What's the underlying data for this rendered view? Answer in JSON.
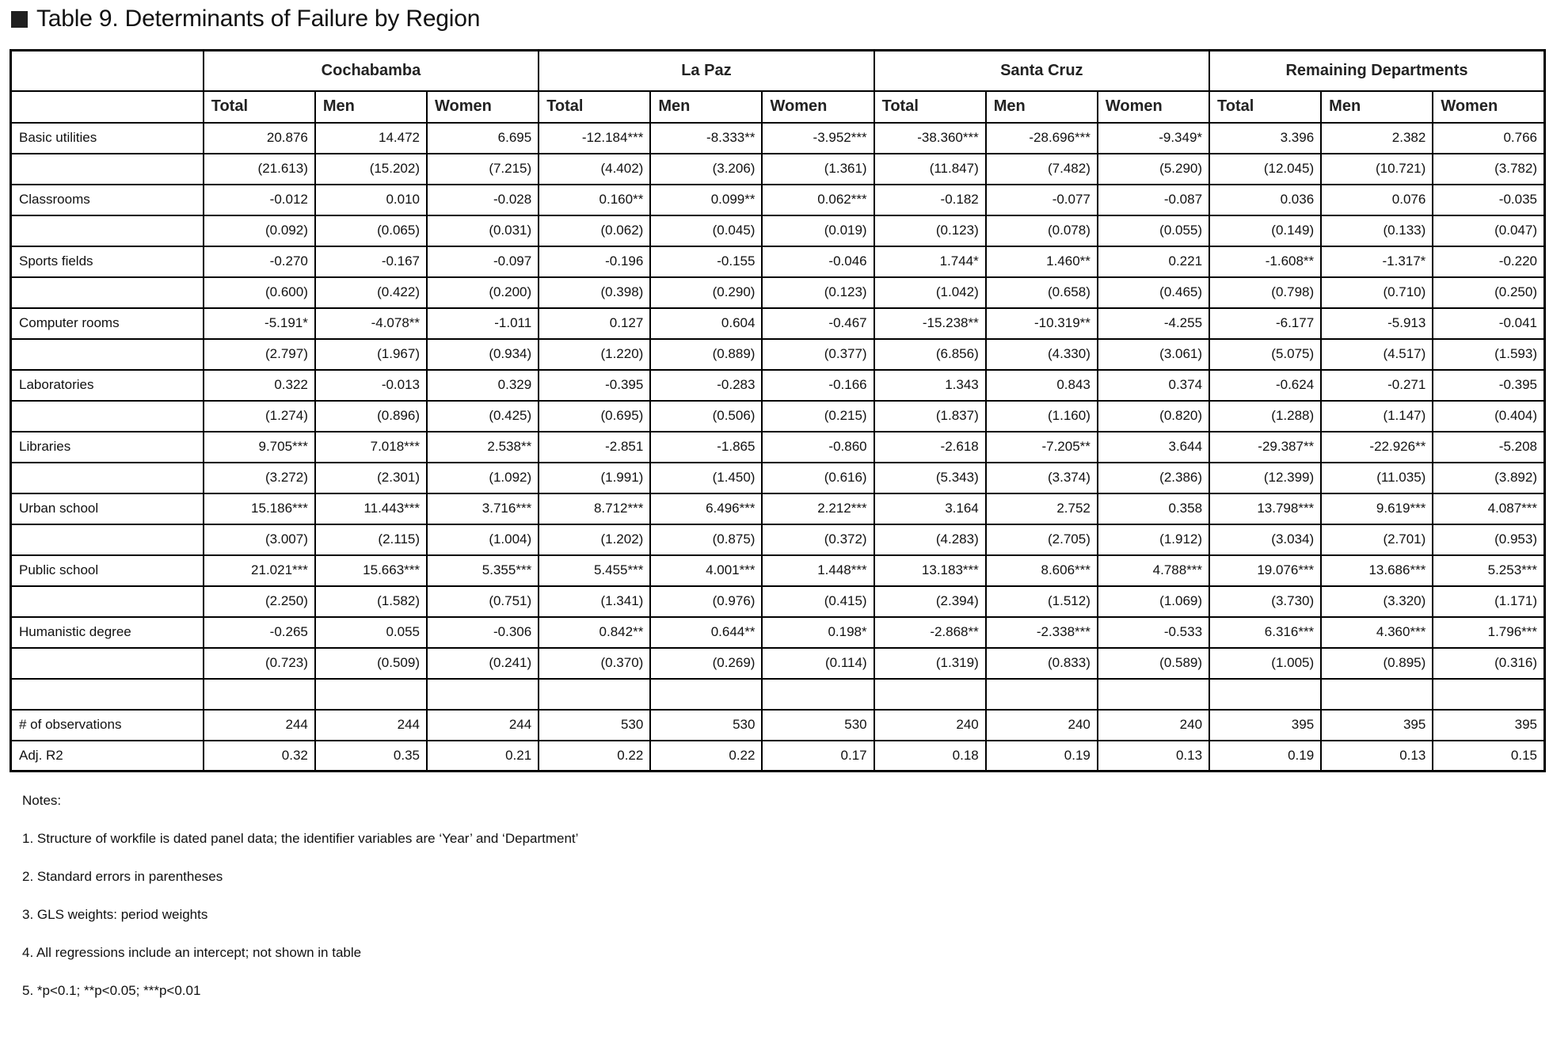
{
  "title": {
    "text": "Table 9. Determinants of Failure by Region"
  },
  "table": {
    "region_groups": [
      "Cochabamba",
      "La Paz",
      "Santa Cruz",
      "Remaining Departments"
    ],
    "sub_headers": [
      "Total",
      "Men",
      "Women"
    ],
    "rows": [
      {
        "label": "Basic utilities",
        "values": [
          "20.876",
          "14.472",
          "6.695",
          "-12.184***",
          "-8.333**",
          "-3.952***",
          "-38.360***",
          "-28.696***",
          "-9.349*",
          "3.396",
          "2.382",
          "0.766"
        ]
      },
      {
        "label": "",
        "values": [
          "(21.613)",
          "(15.202)",
          "(7.215)",
          "(4.402)",
          "(3.206)",
          "(1.361)",
          "(11.847)",
          "(7.482)",
          "(5.290)",
          "(12.045)",
          "(10.721)",
          "(3.782)"
        ]
      },
      {
        "label": "Classrooms",
        "values": [
          "-0.012",
          "0.010",
          "-0.028",
          "0.160**",
          "0.099**",
          "0.062***",
          "-0.182",
          "-0.077",
          "-0.087",
          "0.036",
          "0.076",
          "-0.035"
        ]
      },
      {
        "label": "",
        "values": [
          "(0.092)",
          "(0.065)",
          "(0.031)",
          "(0.062)",
          "(0.045)",
          "(0.019)",
          "(0.123)",
          "(0.078)",
          "(0.055)",
          "(0.149)",
          "(0.133)",
          "(0.047)"
        ]
      },
      {
        "label": "Sports fields",
        "values": [
          "-0.270",
          "-0.167",
          "-0.097",
          "-0.196",
          "-0.155",
          "-0.046",
          "1.744*",
          "1.460**",
          "0.221",
          "-1.608**",
          "-1.317*",
          "-0.220"
        ]
      },
      {
        "label": "",
        "values": [
          "(0.600)",
          "(0.422)",
          "(0.200)",
          "(0.398)",
          "(0.290)",
          "(0.123)",
          "(1.042)",
          "(0.658)",
          "(0.465)",
          "(0.798)",
          "(0.710)",
          "(0.250)"
        ]
      },
      {
        "label": "Computer rooms",
        "values": [
          "-5.191*",
          "-4.078**",
          "-1.011",
          "0.127",
          "0.604",
          "-0.467",
          "-15.238**",
          "-10.319**",
          "-4.255",
          "-6.177",
          "-5.913",
          "-0.041"
        ]
      },
      {
        "label": "",
        "values": [
          "(2.797)",
          "(1.967)",
          "(0.934)",
          "(1.220)",
          "(0.889)",
          "(0.377)",
          "(6.856)",
          "(4.330)",
          "(3.061)",
          "(5.075)",
          "(4.517)",
          "(1.593)"
        ]
      },
      {
        "label": "Laboratories",
        "values": [
          "0.322",
          "-0.013",
          "0.329",
          "-0.395",
          "-0.283",
          "-0.166",
          "1.343",
          "0.843",
          "0.374",
          "-0.624",
          "-0.271",
          "-0.395"
        ]
      },
      {
        "label": "",
        "values": [
          "(1.274)",
          "(0.896)",
          "(0.425)",
          "(0.695)",
          "(0.506)",
          "(0.215)",
          "(1.837)",
          "(1.160)",
          "(0.820)",
          "(1.288)",
          "(1.147)",
          "(0.404)"
        ]
      },
      {
        "label": "Libraries",
        "values": [
          "9.705***",
          "7.018***",
          "2.538**",
          "-2.851",
          "-1.865",
          "-0.860",
          "-2.618",
          "-7.205**",
          "3.644",
          "-29.387**",
          "-22.926**",
          "-5.208"
        ]
      },
      {
        "label": "",
        "values": [
          "(3.272)",
          "(2.301)",
          "(1.092)",
          "(1.991)",
          "(1.450)",
          "(0.616)",
          "(5.343)",
          "(3.374)",
          "(2.386)",
          "(12.399)",
          "(11.035)",
          "(3.892)"
        ]
      },
      {
        "label": "Urban school",
        "values": [
          "15.186***",
          "11.443***",
          "3.716***",
          "8.712***",
          "6.496***",
          "2.212***",
          "3.164",
          "2.752",
          "0.358",
          "13.798***",
          "9.619***",
          "4.087***"
        ]
      },
      {
        "label": "",
        "values": [
          "(3.007)",
          "(2.115)",
          "(1.004)",
          "(1.202)",
          "(0.875)",
          "(0.372)",
          "(4.283)",
          "(2.705)",
          "(1.912)",
          "(3.034)",
          "(2.701)",
          "(0.953)"
        ]
      },
      {
        "label": "Public school",
        "values": [
          "21.021***",
          "15.663***",
          "5.355***",
          "5.455***",
          "4.001***",
          "1.448***",
          "13.183***",
          "8.606***",
          "4.788***",
          "19.076***",
          "13.686***",
          "5.253***"
        ]
      },
      {
        "label": "",
        "values": [
          "(2.250)",
          "(1.582)",
          "(0.751)",
          "(1.341)",
          "(0.976)",
          "(0.415)",
          "(2.394)",
          "(1.512)",
          "(1.069)",
          "(3.730)",
          "(3.320)",
          "(1.171)"
        ]
      },
      {
        "label": "Humanistic degree",
        "values": [
          "-0.265",
          "0.055",
          "-0.306",
          "0.842**",
          "0.644**",
          "0.198*",
          "-2.868**",
          "-2.338***",
          "-0.533",
          "6.316***",
          "4.360***",
          "1.796***"
        ]
      },
      {
        "label": "",
        "values": [
          "(0.723)",
          "(0.509)",
          "(0.241)",
          "(0.370)",
          "(0.269)",
          "(0.114)",
          "(1.319)",
          "(0.833)",
          "(0.589)",
          "(1.005)",
          "(0.895)",
          "(0.316)"
        ]
      },
      {
        "label": "",
        "values": [
          "",
          "",
          "",
          "",
          "",
          "",
          "",
          "",
          "",
          "",
          "",
          ""
        ]
      },
      {
        "label": "# of observations",
        "values": [
          "244",
          "244",
          "244",
          "530",
          "530",
          "530",
          "240",
          "240",
          "240",
          "395",
          "395",
          "395"
        ]
      },
      {
        "label": "Adj. R2",
        "values": [
          "0.32",
          "0.35",
          "0.21",
          "0.22",
          "0.22",
          "0.17",
          "0.18",
          "0.19",
          "0.13",
          "0.19",
          "0.13",
          "0.15"
        ]
      }
    ]
  },
  "notes": {
    "heading": "Notes:",
    "items": [
      "1. Structure of workfile is dated panel data; the identifier variables are ‘Year’ and ‘Department’",
      "2. Standard errors in parentheses",
      "3. GLS weights: period weights",
      "4. All regressions include an intercept; not shown in table",
      "5. *p<0.1; **p<0.05; ***p<0.01"
    ]
  },
  "colors": {
    "text": "#111111",
    "border": "#000000",
    "background": "#ffffff",
    "title_bullet": "#1f1f1f"
  }
}
